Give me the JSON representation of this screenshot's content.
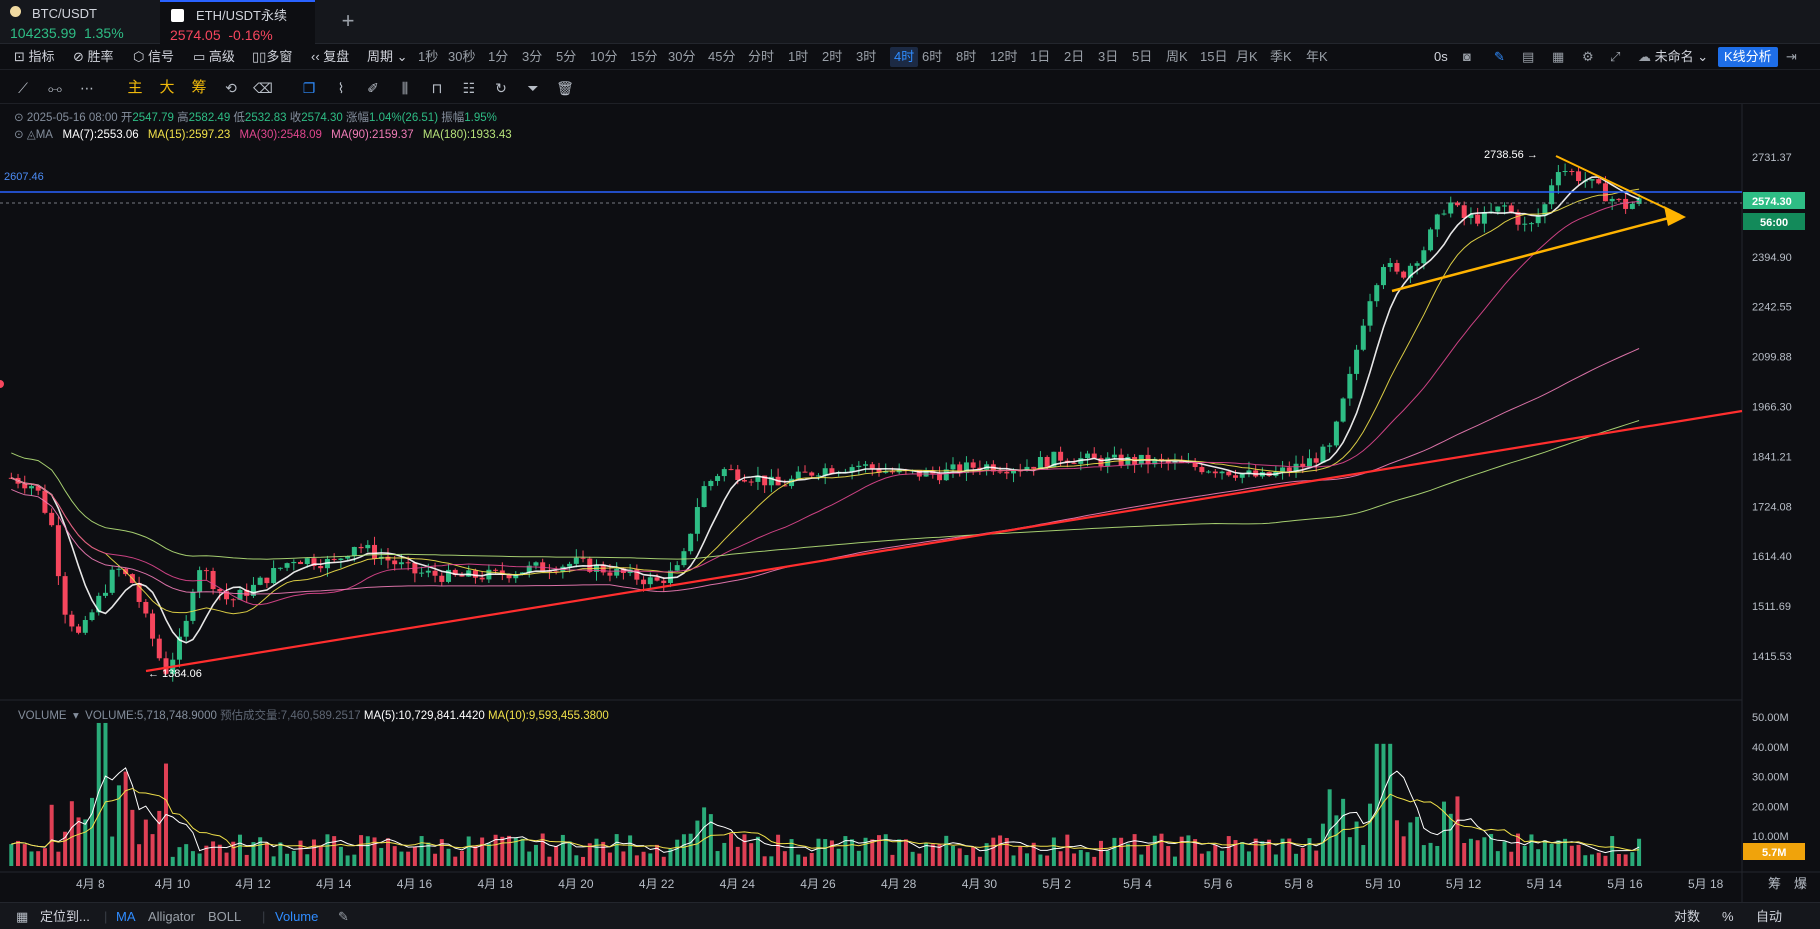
{
  "tabs": [
    {
      "pair": "BTC/USDT",
      "price": "104235.99",
      "change": "1.35%",
      "dir": "up"
    },
    {
      "pair": "ETH/USDT永续",
      "price": "2574.05",
      "change": "-0.16%",
      "dir": "down"
    }
  ],
  "toolbar": {
    "indicators": "指标",
    "winrate": "胜率",
    "signal": "信号",
    "advanced": "高级",
    "multi": "多窗",
    "replay": "复盘",
    "period": "周期",
    "periods": [
      "1秒",
      "30秒",
      "1分",
      "3分",
      "5分",
      "10分",
      "15分",
      "30分",
      "45分",
      "分时",
      "1时",
      "2时",
      "3时",
      "4时",
      "6时",
      "8时",
      "12时",
      "1日",
      "2日",
      "3日",
      "5日",
      "周K",
      "15日",
      "月K",
      "季K",
      "年K"
    ],
    "active_period": "4时",
    "timer": "0s",
    "layout_name": "未命名",
    "kline_analysis": "K线分析"
  },
  "drawing_tools": {
    "main": "主",
    "big": "大",
    "chips": "筹"
  },
  "candle_legend": {
    "datetime": "2025-05-16 08:00",
    "open_label": "开",
    "open": "2547.79",
    "high_label": "高",
    "high": "2582.49",
    "low_label": "低",
    "low": "2532.83",
    "close_label": "收",
    "close": "2574.30",
    "change_label": "涨幅",
    "change": "1.04%(26.51)",
    "amplitude_label": "振幅",
    "amplitude": "1.95%"
  },
  "ma_legend": {
    "label": "MA",
    "items": [
      {
        "text": "MA(7):2553.06",
        "color": "#ffffff"
      },
      {
        "text": "MA(15):2597.23",
        "color": "#f0e04a"
      },
      {
        "text": "MA(30):2548.09",
        "color": "#e0478f"
      },
      {
        "text": "MA(90):2159.37",
        "color": "#f07cb7"
      },
      {
        "text": "MA(180):1933.43",
        "color": "#b6e27a"
      }
    ]
  },
  "volume_legend": {
    "label": "VOLUME",
    "volume": "VOLUME:5,718,748.9000",
    "estimated": "预估成交量:7,460,589.2517",
    "ma5": "MA(5):10,729,841.4420",
    "ma10": "MA(10):9,593,455.3800"
  },
  "price_axis": [
    "2731.37",
    "2394.90",
    "2242.55",
    "2099.88",
    "1966.30",
    "1841.21",
    "1724.08",
    "1614.40",
    "1511.69",
    "1415.53"
  ],
  "price_tags": {
    "current": "2574.30",
    "countdown": "56:00",
    "hline": "2607.46"
  },
  "volume_axis": [
    "50.00M",
    "40.00M",
    "30.00M",
    "20.00M",
    "10.00M"
  ],
  "volume_tag": "5.7M",
  "annotations": {
    "high": "2738.56",
    "low": "1384.06"
  },
  "date_axis": [
    "4月 8",
    "4月 10",
    "4月 12",
    "4月 14",
    "4月 16",
    "4月 18",
    "4月 20",
    "4月 22",
    "4月 24",
    "4月 26",
    "4月 28",
    "4月 30",
    "5月 2",
    "5月 4",
    "5月 6",
    "5月 8",
    "5月 10",
    "5月 12",
    "5月 14",
    "5月 16",
    "5月 18"
  ],
  "axis_controls": {
    "chips": "筹",
    "expand": "爆"
  },
  "bottom": {
    "locate": "定位到...",
    "indicators": [
      "MA",
      "Alligator",
      "BOLL",
      "Volume"
    ],
    "log": "对数",
    "percent": "%",
    "auto": "自动"
  },
  "colors": {
    "up": "#2ebd85",
    "down": "#f6465d",
    "accent": "#2962ff",
    "trend_red": "#ff2e2e",
    "trend_yellow": "#ffb300"
  },
  "chart_data": {
    "type": "candlestick",
    "title": "",
    "interval": "4时",
    "price_range": [
      1340,
      2800
    ],
    "key_points": [
      {
        "date": "4月 7",
        "price": 1790
      },
      {
        "date": "4月 9",
        "price": 1384.06
      },
      {
        "date": "4月 10",
        "price": 1600
      },
      {
        "date": "4月 16",
        "price": 1560
      },
      {
        "date": "4月 22",
        "price": 1580
      },
      {
        "date": "4月 23",
        "price": 1800
      },
      {
        "date": "5月 6",
        "price": 1770
      },
      {
        "date": "5月 8",
        "price": 1820
      },
      {
        "date": "5月 9",
        "price": 2300
      },
      {
        "date": "5月 11",
        "price": 2580
      },
      {
        "date": "5月 13",
        "price": 2500
      },
      {
        "date": "5月 14",
        "price": 2738.56
      },
      {
        "date": "5月 16",
        "price": 2574.3
      }
    ]
  }
}
